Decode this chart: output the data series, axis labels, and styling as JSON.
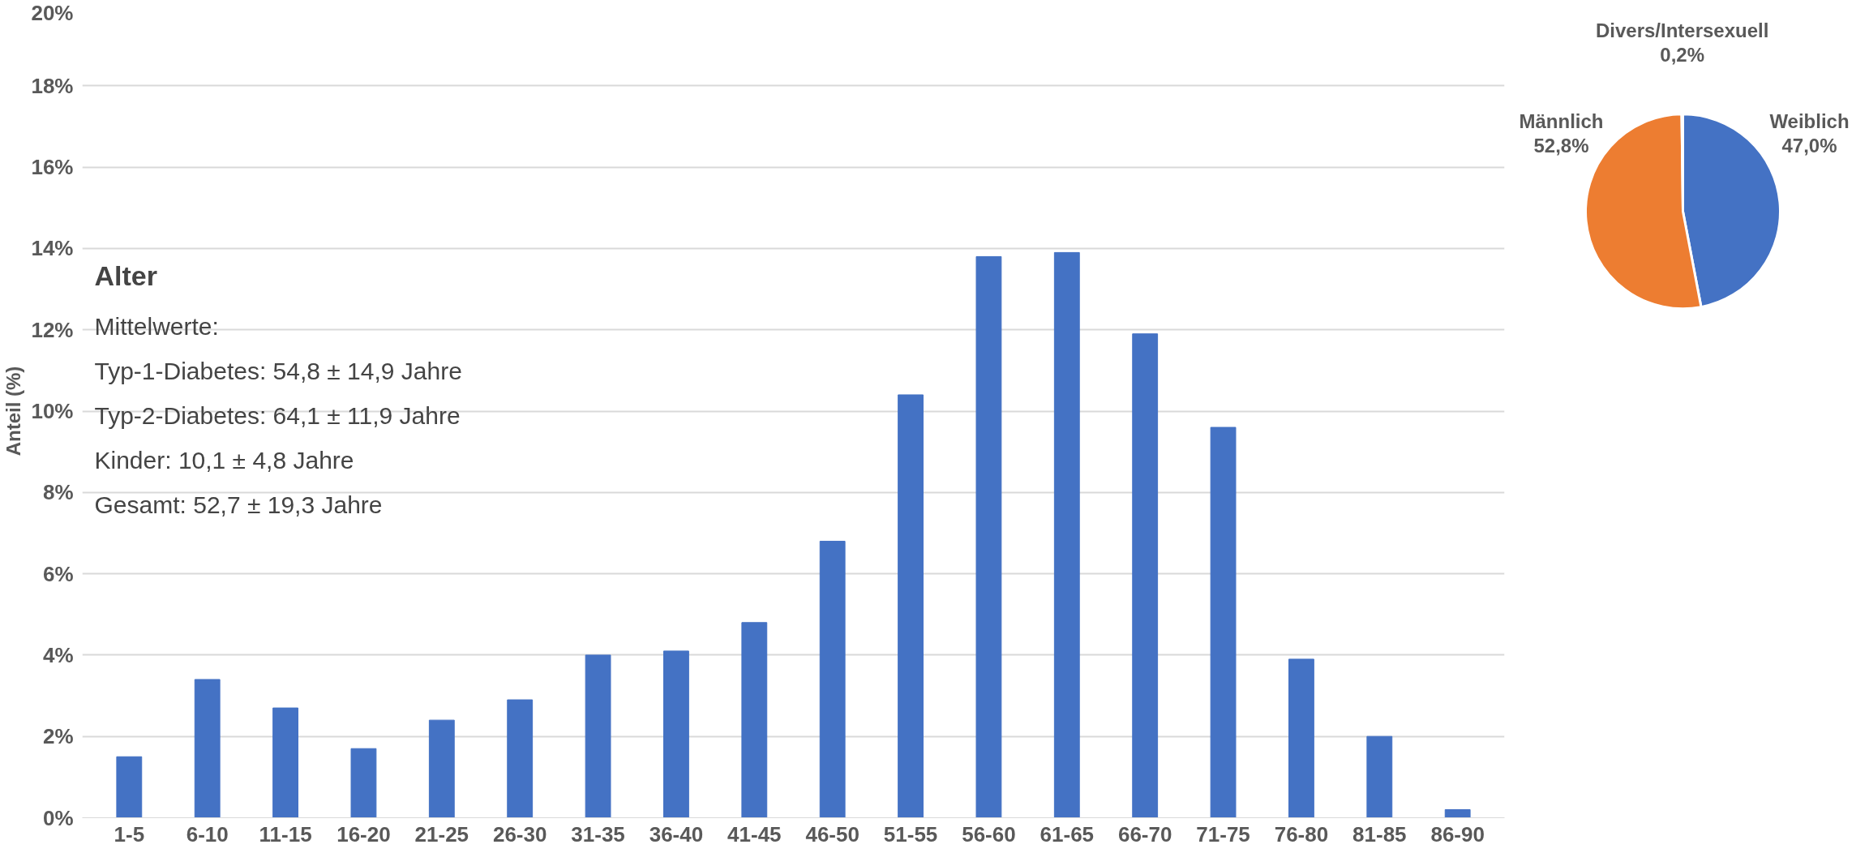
{
  "chart_data": [
    {
      "type": "bar",
      "title": "Alter",
      "ylabel": "Anteil (%)",
      "categories": [
        "1-5",
        "6-10",
        "11-15",
        "16-20",
        "21-25",
        "26-30",
        "31-35",
        "36-40",
        "41-45",
        "46-50",
        "51-55",
        "56-60",
        "61-65",
        "66-70",
        "71-75",
        "76-80",
        "81-85",
        "86-90"
      ],
      "values": [
        1.5,
        3.4,
        2.7,
        1.7,
        2.4,
        2.9,
        4.0,
        4.1,
        4.8,
        6.8,
        10.4,
        13.8,
        13.9,
        11.9,
        9.6,
        3.9,
        2.0,
        0.2
      ],
      "color": "#4472c4",
      "ylim": [
        0,
        20
      ],
      "yticks": [
        {
          "value": 0,
          "label": "0%"
        },
        {
          "value": 2,
          "label": "2%"
        },
        {
          "value": 4,
          "label": "4%"
        },
        {
          "value": 6,
          "label": "6%"
        },
        {
          "value": 8,
          "label": "8%"
        },
        {
          "value": 10,
          "label": "10%"
        },
        {
          "value": 12,
          "label": "12%"
        },
        {
          "value": 14,
          "label": "14%"
        },
        {
          "value": 16,
          "label": "16%"
        },
        {
          "value": 18,
          "label": "18%"
        },
        {
          "value": 20,
          "label": "20%"
        }
      ],
      "grid": "y",
      "annotations": [
        "Mittelwerte:",
        "Typ-1-Diabetes: 54,8 ± 14,9 Jahre",
        "Typ-2-Diabetes: 64,1 ± 11,9 Jahre",
        "Kinder: 10,1 ± 4,8 Jahre",
        "Gesamt: 52,7 ± 19,3 Jahre"
      ]
    },
    {
      "type": "pie",
      "categories": [
        "Weiblich",
        "Männlich",
        "Divers/Intersexuell"
      ],
      "values": [
        47.0,
        52.8,
        0.2
      ],
      "colors": [
        "#4472c4",
        "#ed7d31",
        "#a5a5a5"
      ],
      "value_labels": [
        "47,0%",
        "52,8%",
        "0,2%"
      ]
    }
  ]
}
